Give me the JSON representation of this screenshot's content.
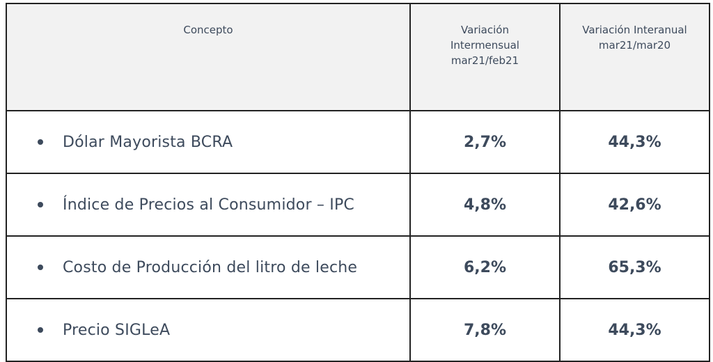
{
  "table": {
    "headers": {
      "concept": "Concepto",
      "monthly": [
        "Variación",
        "Intermensual",
        "mar21/feb21"
      ],
      "annual": [
        "Variación Interanual",
        "mar21/mar20"
      ]
    },
    "rows": [
      {
        "concept": "Dólar Mayorista BCRA",
        "monthly": "2,7%",
        "annual": "44,3%"
      },
      {
        "concept": "Índice de Precios al Consumidor – IPC",
        "monthly": "4,8%",
        "annual": "42,6%"
      },
      {
        "concept": "Costo de Producción del litro de leche",
        "monthly": "6,2%",
        "annual": "65,3%"
      },
      {
        "concept": "Precio SIGLeA",
        "monthly": "7,8%",
        "annual": "44,3%"
      }
    ]
  }
}
